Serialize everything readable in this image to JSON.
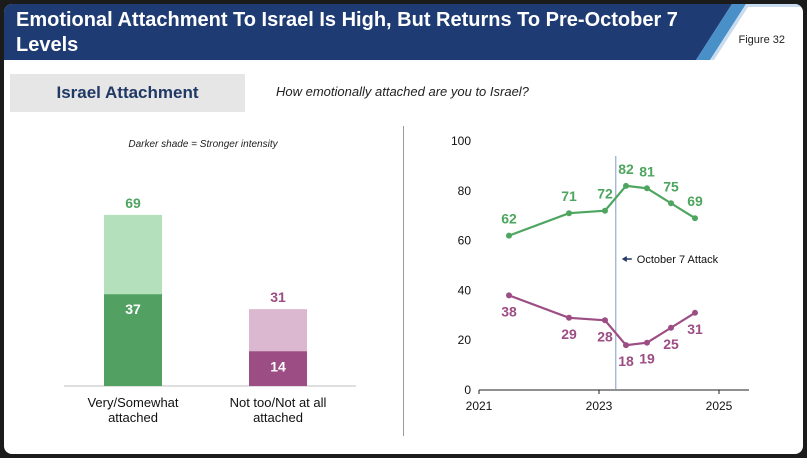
{
  "header": {
    "title": "Emotional Attachment To Israel Is High, But Returns To Pre-October 7 Levels",
    "figure_label": "Figure 32"
  },
  "section": {
    "title": "Israel Attachment",
    "question": "How emotionally attached are you to Israel?"
  },
  "colors": {
    "banner_navy": "#1f3b73",
    "banner_accent": "#4a90c8",
    "green_light": "#b4e0bb",
    "green_dark": "#52a062",
    "green_text": "#4ea55f",
    "purple_light": "#dbb8cf",
    "purple_dark": "#9c4d83",
    "purple_text": "#9c4d83",
    "event_line": "#7f9bc4",
    "annotation_arrow": "#1f3864"
  },
  "chart_data": [
    {
      "type": "bar",
      "note": "Darker shade = Stronger intensity",
      "categories": [
        "Very/Somewhat attached",
        "Not too/Not at all attached"
      ],
      "category_lines": [
        [
          "Very/Somewhat",
          "attached"
        ],
        [
          "Not too/Not at all",
          "attached"
        ]
      ],
      "series": [
        {
          "values": [
            69,
            31
          ]
        },
        {
          "values": [
            37,
            14
          ]
        }
      ],
      "ylim": [
        0,
        100
      ]
    },
    {
      "type": "line",
      "x_ticks": [
        2021,
        2023,
        2025
      ],
      "y_ticks": [
        0,
        20,
        40,
        60,
        80,
        100
      ],
      "ylim": [
        0,
        100
      ],
      "xlim": [
        2021,
        2025.5
      ],
      "series": [
        {
          "x": [
            2021.5,
            2022.5,
            2023.1,
            2023.45,
            2023.8,
            2024.2,
            2024.6
          ],
          "values": [
            62,
            71,
            72,
            82,
            81,
            75,
            69
          ]
        },
        {
          "x": [
            2021.5,
            2022.5,
            2023.1,
            2023.45,
            2023.8,
            2024.2,
            2024.6
          ],
          "values": [
            38,
            29,
            28,
            18,
            19,
            25,
            31
          ]
        }
      ],
      "event": {
        "label": "October 7 Attack",
        "x": 2023.28
      }
    }
  ]
}
